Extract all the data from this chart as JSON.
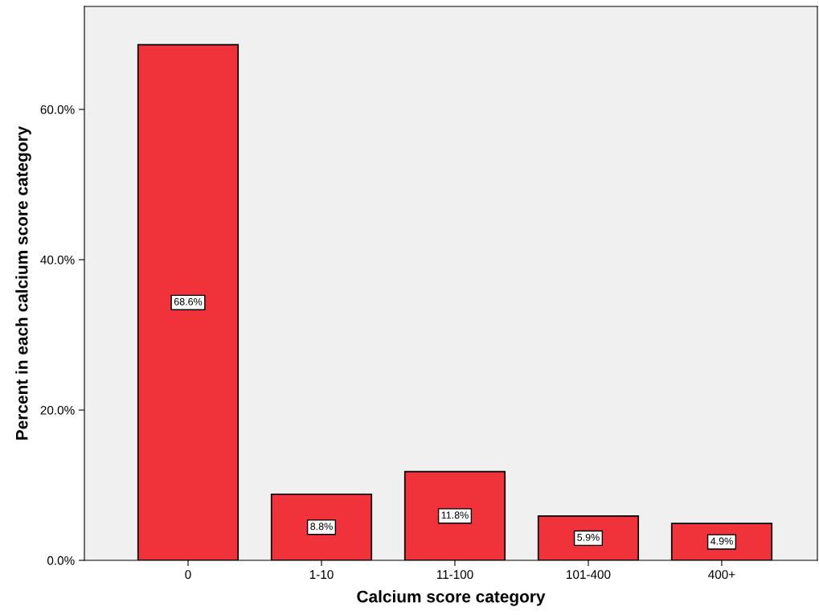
{
  "chart_data": {
    "type": "bar",
    "xlabel": "Calcium score category",
    "ylabel": "Percent in each calcium score category",
    "categories": [
      "0",
      "1-10",
      "11-100",
      "101-400",
      "400+"
    ],
    "values": [
      68.6,
      8.8,
      11.8,
      5.9,
      4.9
    ],
    "value_labels": [
      "68.6%",
      "8.8%",
      "11.8%",
      "5.9%",
      "4.9%"
    ],
    "color": "#f0333a",
    "ylim": [
      0,
      73.7
    ],
    "yticks": [
      {
        "value": 0,
        "label": "0.0%"
      },
      {
        "value": 20,
        "label": "20.0%"
      },
      {
        "value": 40,
        "label": "40.0%"
      },
      {
        "value": 60,
        "label": "60.0%"
      }
    ],
    "grid": false
  }
}
